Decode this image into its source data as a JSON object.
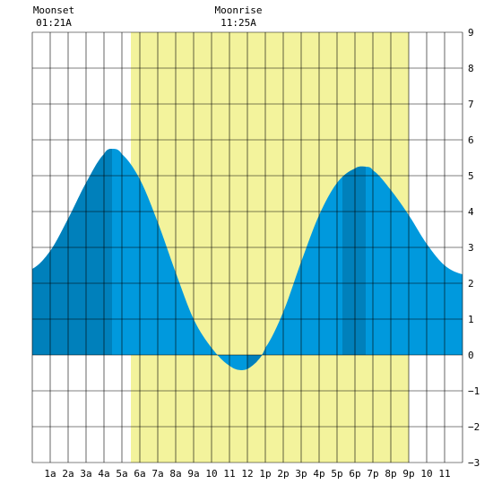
{
  "chart_data": {
    "type": "area",
    "title": "",
    "xlabel": "",
    "ylabel": "",
    "ylim": [
      -3,
      9
    ],
    "xlim": [
      0,
      24
    ],
    "y_ticks": [
      -3,
      -2,
      -1,
      0,
      1,
      2,
      3,
      4,
      5,
      6,
      7,
      8,
      9
    ],
    "x_tick_labels": [
      "1a",
      "2a",
      "3a",
      "4a",
      "5a",
      "6a",
      "7a",
      "8a",
      "9a",
      "10",
      "11",
      "12",
      "1p",
      "2p",
      "3p",
      "4p",
      "5p",
      "6p",
      "7p",
      "8p",
      "9p",
      "10",
      "11"
    ],
    "grid": true,
    "daylight": {
      "start": 5.5,
      "end": 21.0
    },
    "colors": {
      "daylight": "#f3f39c",
      "tide_day": "#0099dd",
      "tide_night": "#0080bb",
      "grid": "#000000",
      "background": "#ffffff"
    },
    "series": [
      {
        "x": [
          0,
          1,
          2,
          3,
          4,
          4.5,
          5,
          6,
          7,
          8,
          9,
          10,
          11,
          11.8,
          12.5,
          13,
          14,
          15,
          16,
          17,
          18,
          18.6,
          19,
          20,
          21,
          22,
          23,
          24
        ],
        "values": [
          2.4,
          2.9,
          3.8,
          4.8,
          5.6,
          5.75,
          5.6,
          4.9,
          3.7,
          2.3,
          1.0,
          0.2,
          -0.3,
          -0.42,
          -0.2,
          0.2,
          1.2,
          2.6,
          3.9,
          4.8,
          5.2,
          5.25,
          5.15,
          4.6,
          3.9,
          3.1,
          2.5,
          2.25
        ]
      }
    ],
    "annotations": [
      {
        "label": "Moonset",
        "time": "01:21A",
        "x": 2.2
      },
      {
        "label": "Moonrise",
        "time": "11:25A",
        "x": 12.5
      }
    ]
  }
}
